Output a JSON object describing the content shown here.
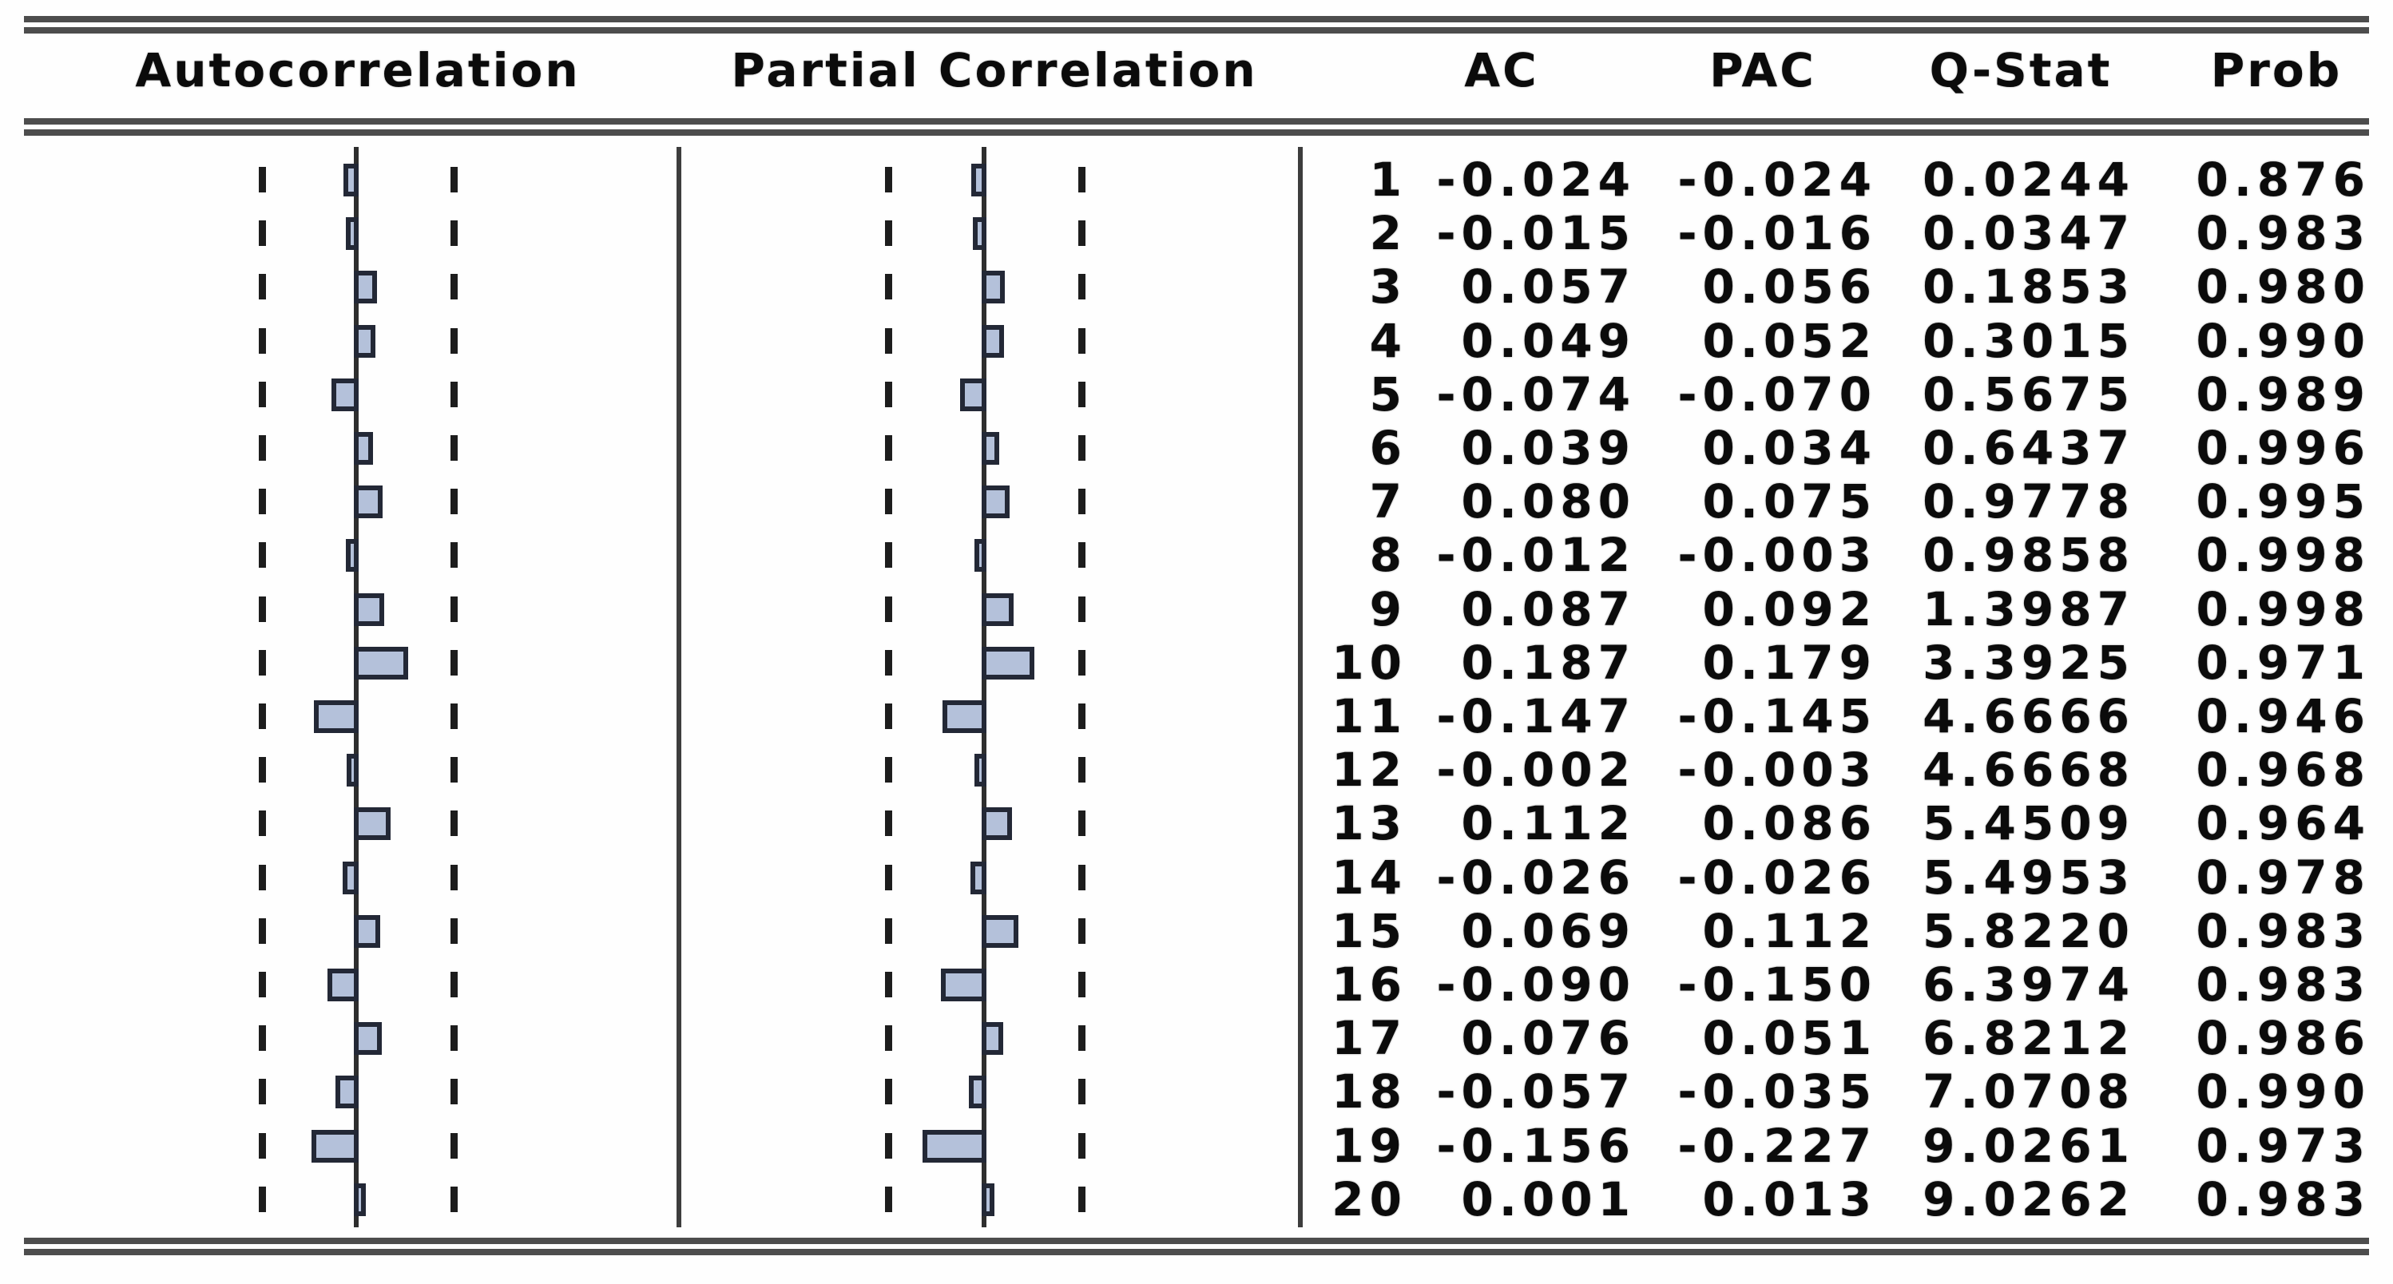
{
  "header": {
    "autocorrelation": "Autocorrelation",
    "partial_correlation": "Partial Correlation",
    "ac": "AC",
    "pac": "PAC",
    "q_stat": "Q-Stat",
    "prob": "Prob"
  },
  "chart_data": {
    "type": "bar",
    "subtype": "correlogram",
    "orientation": "horizontal",
    "title": "",
    "lags": [
      1,
      2,
      3,
      4,
      5,
      6,
      7,
      8,
      9,
      10,
      11,
      12,
      13,
      14,
      15,
      16,
      17,
      18,
      19,
      20
    ],
    "series": [
      {
        "name": "AC",
        "values": [
          -0.024,
          -0.015,
          0.057,
          0.049,
          -0.074,
          0.039,
          0.08,
          -0.012,
          0.087,
          0.187,
          -0.147,
          -0.002,
          0.112,
          -0.026,
          0.069,
          -0.09,
          0.076,
          -0.057,
          -0.156,
          0.001
        ]
      },
      {
        "name": "PAC",
        "values": [
          -0.024,
          -0.016,
          0.056,
          0.052,
          -0.07,
          0.034,
          0.075,
          -0.003,
          0.092,
          0.179,
          -0.145,
          -0.003,
          0.086,
          -0.026,
          0.112,
          -0.15,
          0.051,
          -0.035,
          -0.227,
          0.013
        ]
      }
    ],
    "xlim": [
      -0.45,
      0.45
    ],
    "confidence_band_estimate": 0.4,
    "zero_line": true,
    "grid": false,
    "bar_fill": "#b4c1da",
    "bar_border": "#232836"
  },
  "table": {
    "q_stat": [
      0.0244,
      0.0347,
      0.1853,
      0.3015,
      0.5675,
      0.6437,
      0.9778,
      0.9858,
      1.3987,
      3.3925,
      4.6666,
      4.6668,
      5.4509,
      5.4953,
      5.822,
      6.3974,
      6.8212,
      7.0708,
      9.0261,
      9.0262
    ],
    "prob": [
      0.876,
      0.983,
      0.98,
      0.99,
      0.989,
      0.996,
      0.995,
      0.998,
      0.998,
      0.971,
      0.946,
      0.968,
      0.964,
      0.978,
      0.983,
      0.983,
      0.986,
      0.99,
      0.973,
      0.983
    ]
  }
}
